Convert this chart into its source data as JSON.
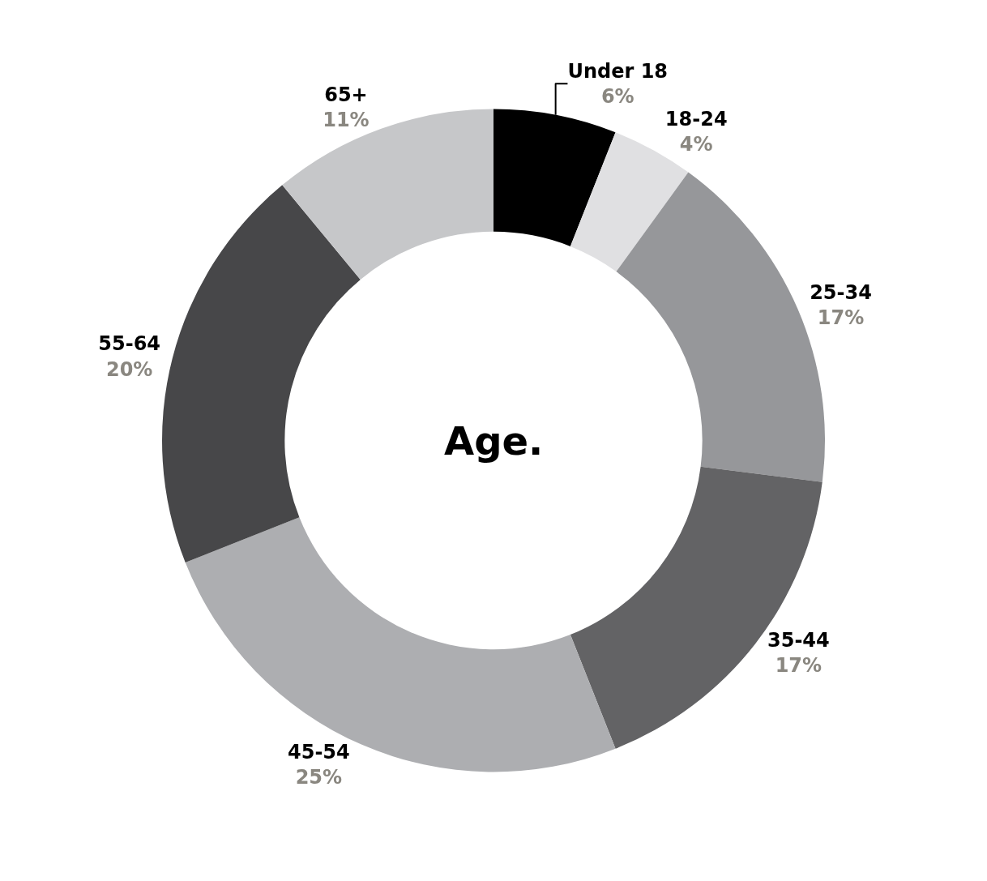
{
  "chart_data": {
    "type": "donut",
    "title": "Age.",
    "categories": [
      "Under 18",
      "18-24",
      "25-34",
      "35-44",
      "45-54",
      "55-64",
      "65+"
    ],
    "values": [
      6,
      4,
      17,
      17,
      25,
      20,
      11
    ],
    "value_labels": [
      "6%",
      "4%",
      "17%",
      "17%",
      "25%",
      "20%",
      "11%"
    ],
    "colors": [
      "#000000",
      "#e0e0e2",
      "#96979a",
      "#636365",
      "#adaeb1",
      "#474749",
      "#c6c7c9"
    ],
    "legend": false
  }
}
